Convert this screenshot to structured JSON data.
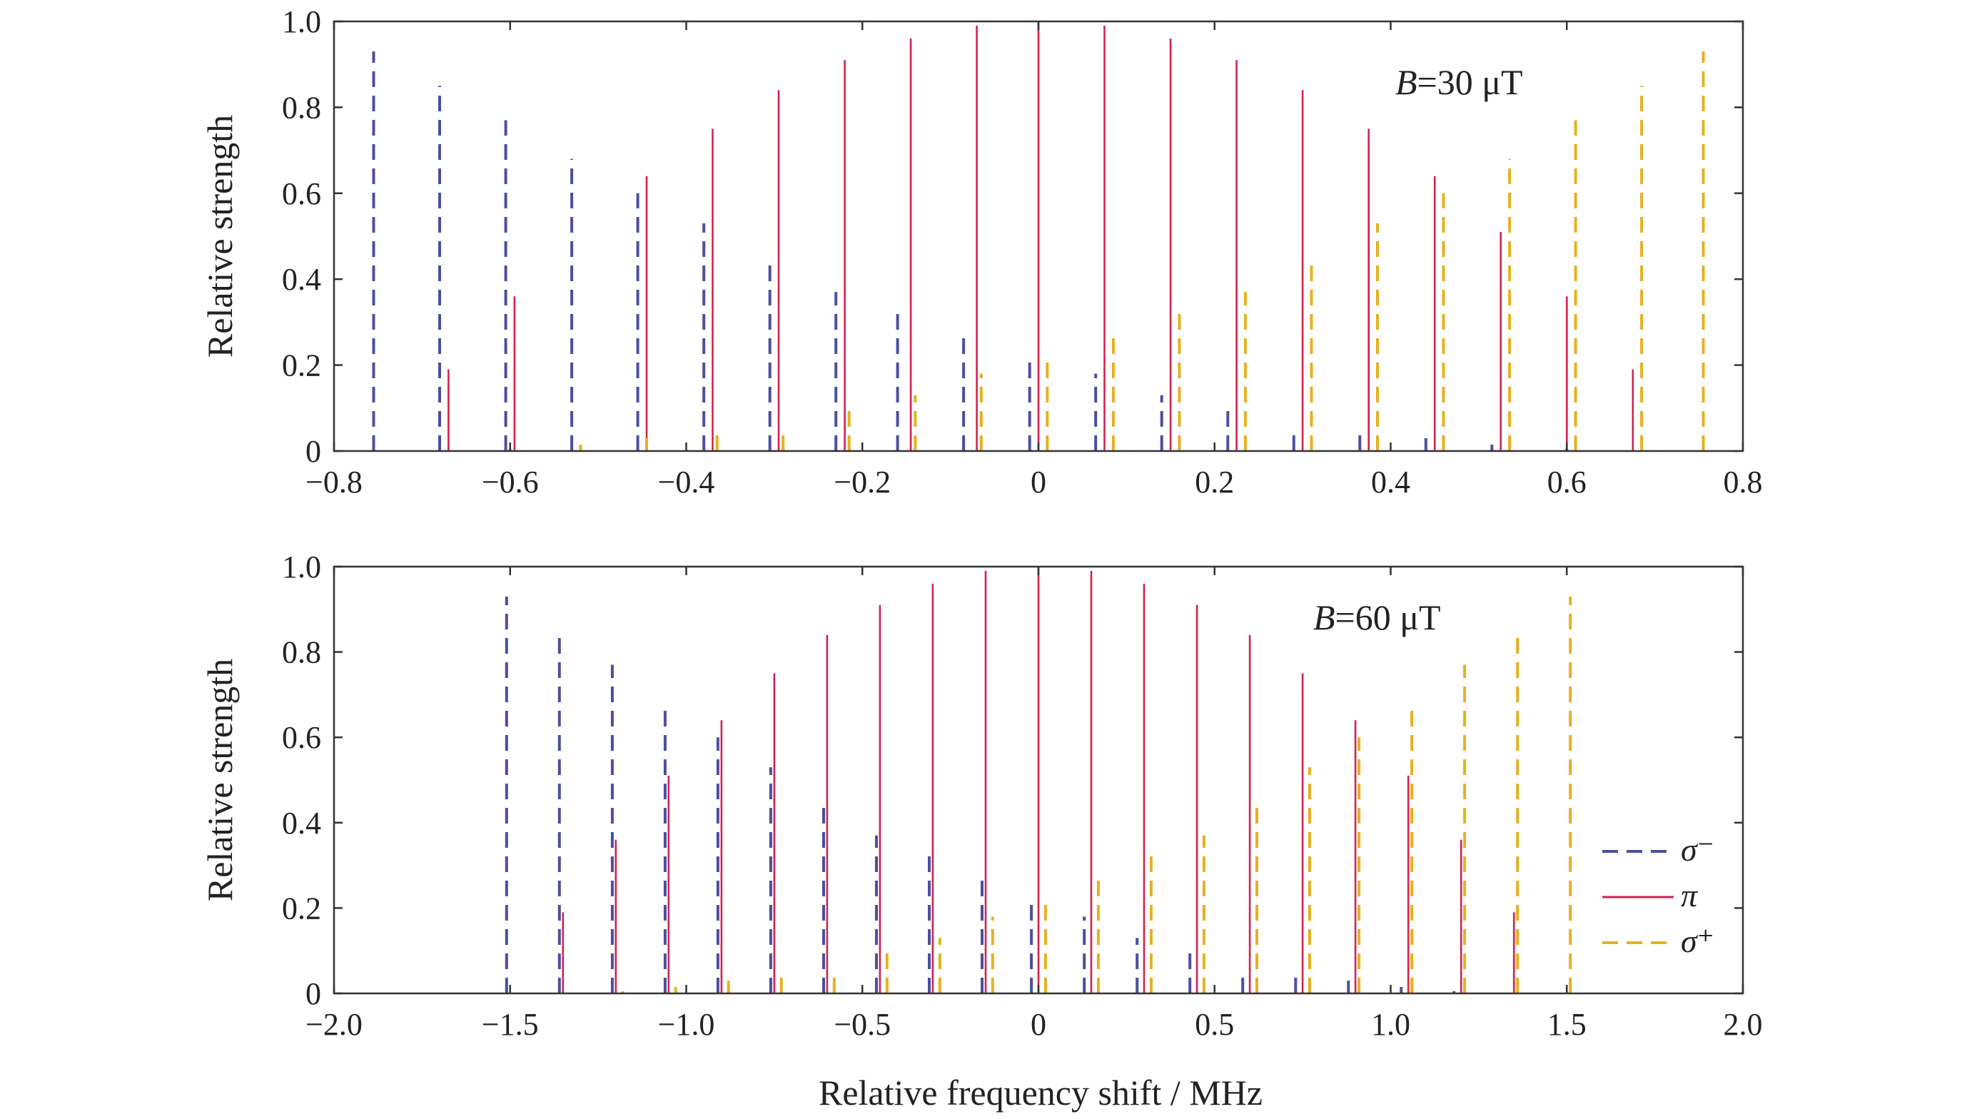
{
  "colors": {
    "sigma_minus": "#4b4f9e",
    "pi": "#d2224f",
    "sigma_plus": "#e8b020",
    "dark": "#3a3a3a",
    "teal": "#2a6f92",
    "orange": "#e08a1c"
  },
  "legend": {
    "sigma_minus": "σ⁻",
    "pi": "π",
    "sigma_plus": "σ⁺"
  },
  "xlabel": "Relative frequency shift / MHz",
  "chart_data": [
    {
      "type": "bar",
      "annotation_var": "B",
      "annotation_eq": "=30 μT",
      "xlabel": "Relative frequency shift / MHz",
      "ylabel": "Relative strength",
      "xlim": [
        -0.8,
        0.8
      ],
      "ylim": [
        0,
        1.0
      ],
      "xticks": [
        "−0.8",
        "−0.6",
        "−0.4",
        "−0.2",
        "0",
        "0.2",
        "0.4",
        "0.6",
        "0.8"
      ],
      "xtick_values": [
        -0.8,
        -0.6,
        -0.4,
        -0.2,
        0,
        0.2,
        0.4,
        0.6,
        0.8
      ],
      "yticks": [
        "0",
        "0.2",
        "0.4",
        "0.6",
        "0.8",
        "1.0"
      ],
      "ytick_values": [
        0,
        0.2,
        0.4,
        0.6,
        0.8,
        1.0
      ],
      "series": [
        {
          "name": "σ⁻",
          "x": [
            -0.755,
            -0.68,
            -0.605,
            -0.53,
            -0.455,
            -0.38,
            -0.305,
            -0.23,
            -0.16,
            -0.085,
            -0.01,
            0.065,
            0.14,
            0.215,
            0.29,
            0.365,
            0.44,
            0.515,
            0.6
          ],
          "values": [
            0.93,
            0.85,
            0.77,
            0.68,
            0.6,
            0.53,
            0.45,
            0.37,
            0.33,
            0.28,
            0.21,
            0.18,
            0.13,
            0.1,
            0.05,
            0.05,
            0.03,
            0.015,
            0.005
          ]
        },
        {
          "name": "π",
          "x": [
            -0.67,
            -0.595,
            -0.445,
            -0.37,
            -0.295,
            -0.22,
            -0.145,
            -0.07,
            0,
            0.075,
            0.15,
            0.225,
            0.3,
            0.375,
            0.45,
            0.525,
            0.6,
            0.675
          ],
          "values": [
            0.19,
            0.36,
            0.64,
            0.75,
            0.84,
            0.91,
            0.96,
            0.99,
            1.0,
            0.99,
            0.96,
            0.91,
            0.84,
            0.75,
            0.64,
            0.51,
            0.36,
            0.19
          ]
        },
        {
          "name": "σ⁺",
          "x": [
            -0.6,
            -0.52,
            -0.445,
            -0.365,
            -0.29,
            -0.215,
            -0.14,
            -0.065,
            0.01,
            0.085,
            0.16,
            0.235,
            0.31,
            0.385,
            0.46,
            0.535,
            0.61,
            0.685,
            0.755
          ],
          "values": [
            0.005,
            0.015,
            0.03,
            0.05,
            0.05,
            0.1,
            0.13,
            0.18,
            0.21,
            0.28,
            0.33,
            0.37,
            0.45,
            0.53,
            0.6,
            0.68,
            0.77,
            0.85,
            0.93
          ]
        }
      ]
    },
    {
      "type": "bar",
      "annotation_var": "B",
      "annotation_eq": "=60 μT",
      "xlabel": "Relative frequency shift / MHz",
      "ylabel": "Relative strength",
      "xlim": [
        -2.0,
        2.0
      ],
      "ylim": [
        0,
        1.0
      ],
      "xticks": [
        "−2.0",
        "−1.5",
        "−1.0",
        "−0.5",
        "0",
        "0.5",
        "1.0",
        "1.5",
        "2.0"
      ],
      "xtick_values": [
        -2.0,
        -1.5,
        -1.0,
        -0.5,
        0,
        0.5,
        1.0,
        1.5,
        2.0
      ],
      "yticks": [
        "0",
        "0.2",
        "0.4",
        "0.6",
        "0.8",
        "1.0"
      ],
      "ytick_values": [
        0,
        0.2,
        0.4,
        0.6,
        0.8,
        1.0
      ],
      "series": [
        {
          "name": "σ⁻",
          "x": [
            -1.51,
            -1.36,
            -1.21,
            -1.06,
            -0.91,
            -0.76,
            -0.61,
            -0.46,
            -0.31,
            -0.16,
            -0.02,
            0.13,
            0.28,
            0.43,
            0.58,
            0.73,
            0.88,
            1.03,
            1.18
          ],
          "values": [
            0.93,
            0.85,
            0.77,
            0.68,
            0.6,
            0.53,
            0.45,
            0.37,
            0.33,
            0.28,
            0.21,
            0.18,
            0.13,
            0.1,
            0.05,
            0.05,
            0.03,
            0.015,
            0.005
          ]
        },
        {
          "name": "π",
          "x": [
            -1.35,
            -1.2,
            -1.05,
            -0.9,
            -0.75,
            -0.6,
            -0.45,
            -0.3,
            -0.15,
            0,
            0.15,
            0.3,
            0.45,
            0.6,
            0.75,
            0.9,
            1.05,
            1.2,
            1.35
          ],
          "values": [
            0.19,
            0.36,
            0.51,
            0.64,
            0.75,
            0.84,
            0.91,
            0.96,
            0.99,
            1.0,
            0.99,
            0.96,
            0.91,
            0.84,
            0.75,
            0.64,
            0.51,
            0.36,
            0.19
          ]
        },
        {
          "name": "σ⁺",
          "x": [
            -1.18,
            -1.03,
            -0.88,
            -0.73,
            -0.58,
            -0.43,
            -0.28,
            -0.13,
            0.02,
            0.17,
            0.32,
            0.47,
            0.62,
            0.77,
            0.91,
            1.06,
            1.21,
            1.36,
            1.51
          ],
          "values": [
            0.005,
            0.015,
            0.03,
            0.05,
            0.05,
            0.1,
            0.13,
            0.18,
            0.21,
            0.28,
            0.33,
            0.37,
            0.45,
            0.53,
            0.6,
            0.68,
            0.77,
            0.85,
            0.93
          ]
        }
      ]
    }
  ]
}
